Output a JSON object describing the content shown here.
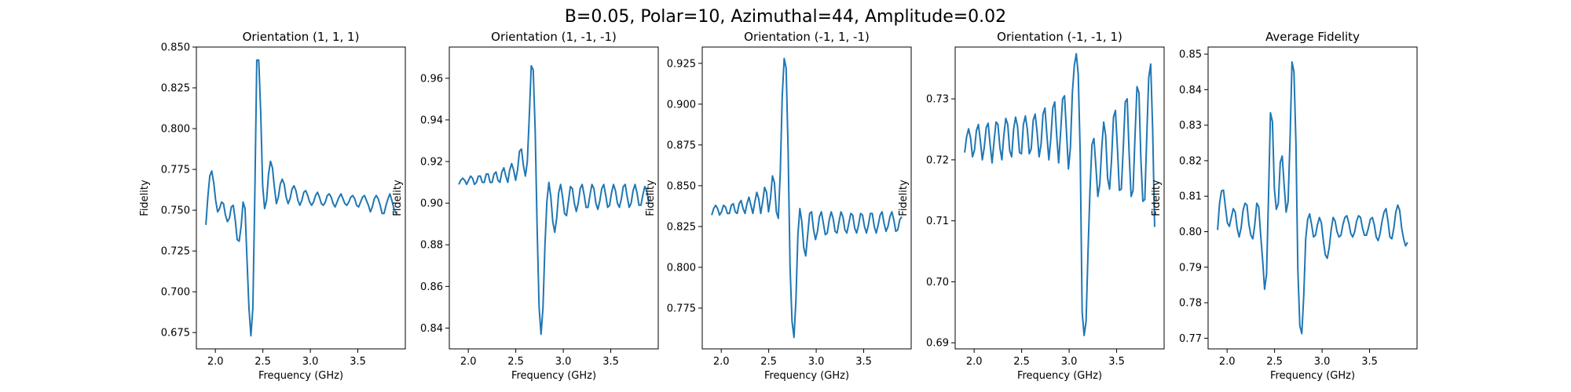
{
  "figure": {
    "title": "B=0.05, Polar=10, Azimuthal=44, Amplitude=0.02",
    "line_color": "#1f77b4"
  },
  "chart_data": [
    {
      "type": "line",
      "title": "Orientation (1, 1, 1)",
      "xlabel": "Frequency (GHz)",
      "ylabel": "Fidelity",
      "xlim": [
        1.8,
        4.0
      ],
      "ylim": [
        0.665,
        0.85
      ],
      "xticks": [
        "2.0",
        "2.5",
        "3.0",
        "3.5"
      ],
      "yticks": [
        "0.675",
        "0.700",
        "0.725",
        "0.750",
        "0.775",
        "0.800",
        "0.825",
        "0.850"
      ],
      "x_range": [
        1.9,
        3.9
      ],
      "y": [
        0.741,
        0.758,
        0.771,
        0.774,
        0.767,
        0.756,
        0.749,
        0.751,
        0.755,
        0.754,
        0.747,
        0.743,
        0.745,
        0.752,
        0.753,
        0.744,
        0.732,
        0.731,
        0.74,
        0.755,
        0.751,
        0.72,
        0.69,
        0.673,
        0.69,
        0.76,
        0.842,
        0.842,
        0.81,
        0.765,
        0.751,
        0.756,
        0.772,
        0.78,
        0.776,
        0.764,
        0.754,
        0.758,
        0.766,
        0.769,
        0.766,
        0.758,
        0.754,
        0.757,
        0.763,
        0.765,
        0.762,
        0.756,
        0.753,
        0.756,
        0.761,
        0.762,
        0.759,
        0.755,
        0.753,
        0.755,
        0.759,
        0.761,
        0.758,
        0.754,
        0.753,
        0.755,
        0.759,
        0.76,
        0.758,
        0.754,
        0.752,
        0.755,
        0.758,
        0.76,
        0.757,
        0.754,
        0.753,
        0.755,
        0.758,
        0.759,
        0.757,
        0.753,
        0.752,
        0.755,
        0.758,
        0.759,
        0.756,
        0.753,
        0.749,
        0.752,
        0.757,
        0.759,
        0.757,
        0.753,
        0.748,
        0.748,
        0.753,
        0.757,
        0.76,
        0.756,
        0.751,
        0.748
      ]
    },
    {
      "type": "line",
      "title": "Orientation (1, -1, -1)",
      "xlabel": "Frequency (GHz)",
      "ylabel": "Fidelity",
      "xlim": [
        1.8,
        4.0
      ],
      "ylim": [
        0.83,
        0.975
      ],
      "xticks": [
        "2.0",
        "2.5",
        "3.0",
        "3.5"
      ],
      "yticks": [
        "0.84",
        "0.86",
        "0.88",
        "0.90",
        "0.92",
        "0.94",
        "0.96"
      ],
      "x_range": [
        1.9,
        3.9
      ],
      "y": [
        0.909,
        0.911,
        0.912,
        0.911,
        0.909,
        0.911,
        0.913,
        0.912,
        0.909,
        0.91,
        0.913,
        0.913,
        0.91,
        0.91,
        0.914,
        0.914,
        0.91,
        0.91,
        0.914,
        0.915,
        0.911,
        0.91,
        0.915,
        0.917,
        0.913,
        0.91,
        0.916,
        0.919,
        0.916,
        0.911,
        0.916,
        0.925,
        0.926,
        0.918,
        0.913,
        0.92,
        0.942,
        0.966,
        0.964,
        0.935,
        0.888,
        0.85,
        0.837,
        0.85,
        0.88,
        0.901,
        0.91,
        0.903,
        0.891,
        0.886,
        0.893,
        0.905,
        0.909,
        0.903,
        0.895,
        0.894,
        0.901,
        0.908,
        0.907,
        0.9,
        0.896,
        0.9,
        0.907,
        0.909,
        0.904,
        0.898,
        0.898,
        0.904,
        0.909,
        0.907,
        0.9,
        0.897,
        0.901,
        0.907,
        0.909,
        0.904,
        0.898,
        0.899,
        0.905,
        0.909,
        0.906,
        0.9,
        0.898,
        0.902,
        0.908,
        0.909,
        0.903,
        0.898,
        0.9,
        0.906,
        0.909,
        0.905,
        0.899,
        0.899,
        0.904,
        0.908,
        0.906,
        0.9
      ]
    },
    {
      "type": "line",
      "title": "Orientation (-1, 1, -1)",
      "xlabel": "Frequency (GHz)",
      "ylabel": "Fidelity",
      "xlim": [
        1.8,
        4.0
      ],
      "ylim": [
        0.75,
        0.935
      ],
      "xticks": [
        "2.0",
        "2.5",
        "3.0",
        "3.5"
      ],
      "yticks": [
        "0.775",
        "0.800",
        "0.825",
        "0.850",
        "0.875",
        "0.900",
        "0.925"
      ],
      "x_range": [
        1.9,
        3.9
      ],
      "y": [
        0.832,
        0.836,
        0.838,
        0.836,
        0.832,
        0.834,
        0.838,
        0.837,
        0.833,
        0.833,
        0.838,
        0.839,
        0.834,
        0.833,
        0.839,
        0.841,
        0.836,
        0.833,
        0.839,
        0.843,
        0.838,
        0.833,
        0.84,
        0.846,
        0.842,
        0.833,
        0.84,
        0.849,
        0.846,
        0.834,
        0.842,
        0.856,
        0.852,
        0.834,
        0.83,
        0.858,
        0.905,
        0.928,
        0.922,
        0.872,
        0.8,
        0.767,
        0.757,
        0.78,
        0.82,
        0.836,
        0.828,
        0.812,
        0.807,
        0.82,
        0.833,
        0.834,
        0.823,
        0.817,
        0.822,
        0.831,
        0.834,
        0.827,
        0.82,
        0.821,
        0.829,
        0.834,
        0.83,
        0.822,
        0.821,
        0.828,
        0.834,
        0.831,
        0.823,
        0.821,
        0.827,
        0.833,
        0.832,
        0.824,
        0.821,
        0.826,
        0.833,
        0.832,
        0.825,
        0.821,
        0.826,
        0.833,
        0.833,
        0.825,
        0.821,
        0.826,
        0.832,
        0.834,
        0.827,
        0.822,
        0.825,
        0.831,
        0.834,
        0.829,
        0.822,
        0.823,
        0.829,
        0.831
      ]
    },
    {
      "type": "line",
      "title": "Orientation (-1, -1, 1)",
      "xlabel": "Frequency (GHz)",
      "ylabel": "Fidelity",
      "xlim": [
        1.8,
        4.0
      ],
      "ylim": [
        0.689,
        0.7385
      ],
      "xticks": [
        "2.0",
        "2.5",
        "3.0",
        "3.5"
      ],
      "yticks": [
        "0.69",
        "0.70",
        "0.71",
        "0.72",
        "0.73"
      ],
      "x_range": [
        1.9,
        3.9
      ],
      "y": [
        0.7212,
        0.7238,
        0.7251,
        0.7236,
        0.7205,
        0.7216,
        0.7248,
        0.7258,
        0.7232,
        0.72,
        0.722,
        0.7253,
        0.726,
        0.7225,
        0.7195,
        0.723,
        0.7262,
        0.7258,
        0.722,
        0.72,
        0.724,
        0.7268,
        0.7258,
        0.7215,
        0.7205,
        0.725,
        0.727,
        0.7255,
        0.7212,
        0.721,
        0.7258,
        0.7272,
        0.725,
        0.721,
        0.7218,
        0.7265,
        0.7275,
        0.7245,
        0.7205,
        0.7225,
        0.7275,
        0.7285,
        0.724,
        0.72,
        0.7235,
        0.7285,
        0.7295,
        0.724,
        0.7195,
        0.7245,
        0.73,
        0.7305,
        0.7245,
        0.7185,
        0.722,
        0.731,
        0.7355,
        0.7374,
        0.734,
        0.721,
        0.695,
        0.6912,
        0.6935,
        0.705,
        0.715,
        0.7225,
        0.7235,
        0.719,
        0.714,
        0.716,
        0.722,
        0.7262,
        0.724,
        0.717,
        0.7152,
        0.72,
        0.727,
        0.7281,
        0.722,
        0.715,
        0.7152,
        0.722,
        0.7295,
        0.73,
        0.721,
        0.714,
        0.715,
        0.724,
        0.732,
        0.731,
        0.72,
        0.7132,
        0.7135,
        0.724,
        0.7335,
        0.7357,
        0.725,
        0.709
      ]
    },
    {
      "type": "line",
      "title": "Average Fidelity",
      "xlabel": "Frequency (GHz)",
      "ylabel": "Fidelity",
      "xlim": [
        1.8,
        4.0
      ],
      "ylim": [
        0.767,
        0.852
      ],
      "xticks": [
        "2.0",
        "2.5",
        "3.0",
        "3.5"
      ],
      "yticks": [
        "0.77",
        "0.78",
        "0.79",
        "0.80",
        "0.81",
        "0.82",
        "0.83",
        "0.84",
        "0.85"
      ],
      "x_range": [
        1.9,
        3.9
      ],
      "y": [
        0.8005,
        0.808,
        0.8115,
        0.8117,
        0.807,
        0.8025,
        0.8015,
        0.804,
        0.8065,
        0.8055,
        0.801,
        0.7985,
        0.801,
        0.806,
        0.808,
        0.8075,
        0.802,
        0.799,
        0.798,
        0.802,
        0.808,
        0.807,
        0.799,
        0.792,
        0.7838,
        0.788,
        0.81,
        0.8335,
        0.831,
        0.812,
        0.8063,
        0.808,
        0.8195,
        0.8213,
        0.813,
        0.8055,
        0.8085,
        0.826,
        0.8478,
        0.845,
        0.825,
        0.789,
        0.7735,
        0.7713,
        0.782,
        0.798,
        0.8035,
        0.805,
        0.802,
        0.7985,
        0.799,
        0.802,
        0.804,
        0.8025,
        0.7975,
        0.7935,
        0.7925,
        0.7955,
        0.8005,
        0.804,
        0.803,
        0.8,
        0.7985,
        0.799,
        0.802,
        0.804,
        0.8045,
        0.8025,
        0.7995,
        0.7985,
        0.8,
        0.803,
        0.8045,
        0.804,
        0.801,
        0.799,
        0.799,
        0.801,
        0.8035,
        0.804,
        0.802,
        0.7985,
        0.7975,
        0.7995,
        0.803,
        0.8055,
        0.8065,
        0.803,
        0.7985,
        0.798,
        0.801,
        0.8055,
        0.8075,
        0.806,
        0.801,
        0.798,
        0.796,
        0.797
      ]
    }
  ]
}
